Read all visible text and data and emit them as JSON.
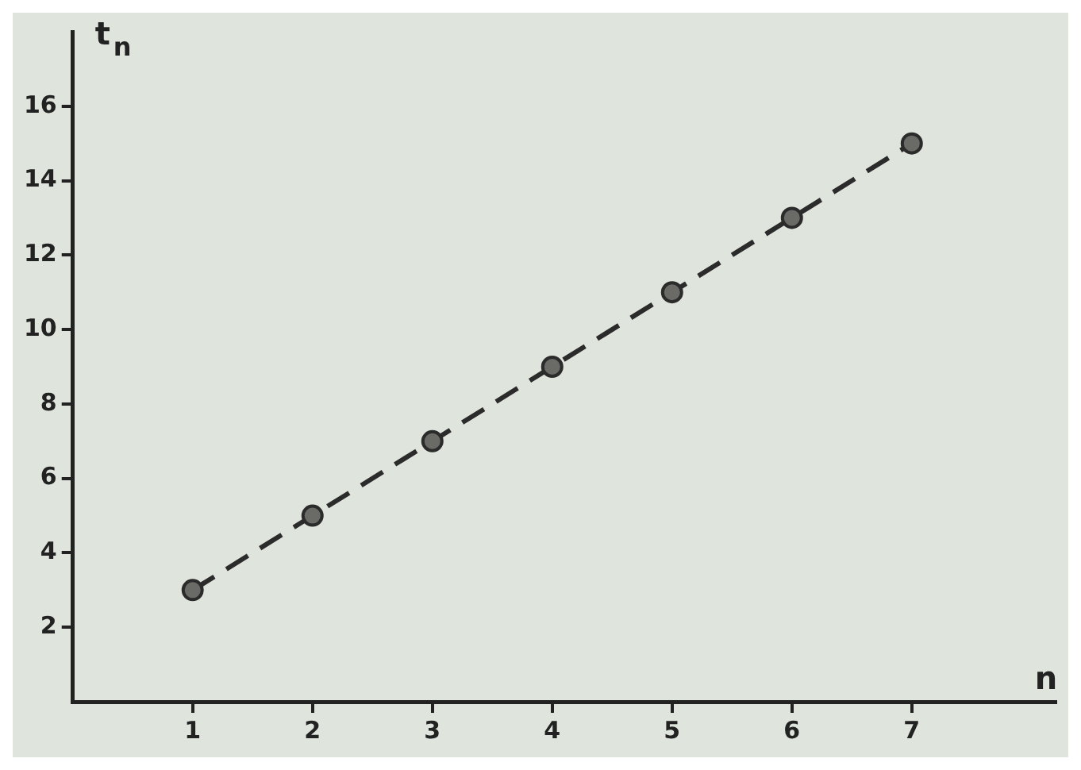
{
  "chart_data": {
    "type": "line",
    "xlabel": "n",
    "ylabel": "t$_{n}$",
    "x": [
      1,
      2,
      3,
      4,
      5,
      6,
      7
    ],
    "series": [
      {
        "color": "#2b2b2b",
        "values": [
          3,
          5,
          7,
          9,
          11,
          13,
          15
        ]
      }
    ],
    "xlim": [
      0,
      8.2
    ],
    "ylim": [
      0,
      18
    ],
    "xticks": [
      1,
      2,
      3,
      4,
      5,
      6,
      7
    ],
    "yticks": [
      2,
      4,
      6,
      8,
      10,
      12,
      14,
      16
    ],
    "grid": false,
    "legend": false,
    "marker": "circle",
    "line_style": "dashed"
  }
}
